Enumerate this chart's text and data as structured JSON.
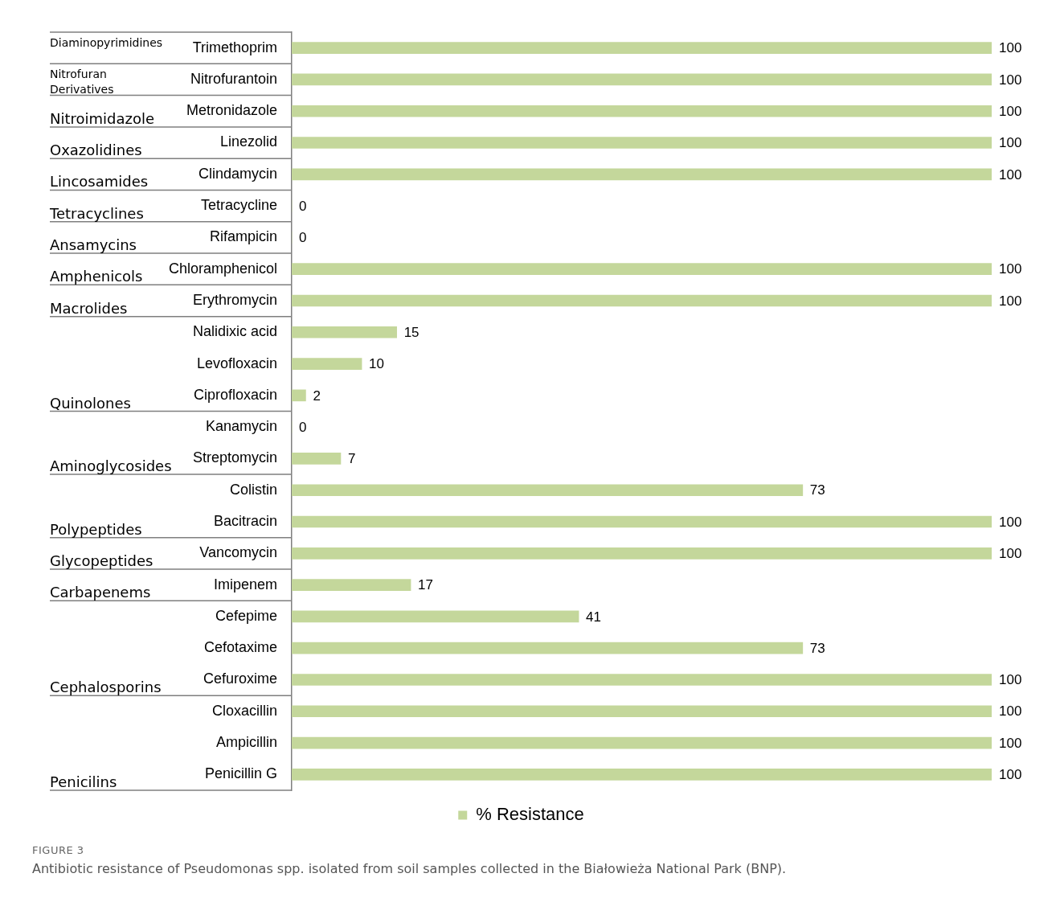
{
  "chart_data": {
    "type": "bar",
    "orientation": "horizontal",
    "title": "FIGURE 3",
    "subtitle": "Antibiotic resistance of Pseudomonas spp. isolated from soil samples collected in the Białowieża National Park (BNP).",
    "categories": [
      "Trimethoprim",
      "Nitrofurantoin",
      "Metronidazole",
      "Linezolid",
      "Clindamycin",
      "Tetracycline",
      "Rifampicin",
      "Chloramphenicol",
      "Erythromycin",
      "Nalidixic acid",
      "Levofloxacin",
      "Ciprofloxacin",
      "Kanamycin",
      "Streptomycin",
      "Colistin",
      "Bacitracin",
      "Vancomycin",
      "Imipenem",
      "Cefepime",
      "Cefotaxime",
      "Cefuroxime",
      "Cloxacillin",
      "Ampicillin",
      "Penicillin G"
    ],
    "series": [
      {
        "name": "% Resistance",
        "color": "#c4d79b",
        "values": [
          100,
          100,
          100,
          100,
          100,
          0,
          0,
          100,
          100,
          15,
          10,
          2,
          0,
          7,
          73,
          100,
          100,
          17,
          41,
          73,
          100,
          100,
          100,
          100
        ]
      }
    ],
    "xlim": [
      0,
      100
    ],
    "data_labels": true,
    "legend": "bottom",
    "y2_categories": [
      "Diaminopyrimidines",
      "Nitrofuran Derivatives",
      "Nitroimidazole",
      "Oxazolidines",
      "Lincosamides",
      "Tetracyclines",
      "Ansamycins",
      "Amphenicols",
      "Macrolides",
      null,
      null,
      "Quinolones",
      null,
      "Aminoglycosides",
      null,
      "Polypeptides",
      "Glycopeptides",
      "Carbapenems",
      null,
      null,
      "Cephalosporins",
      null,
      null,
      "Penicilins"
    ]
  }
}
